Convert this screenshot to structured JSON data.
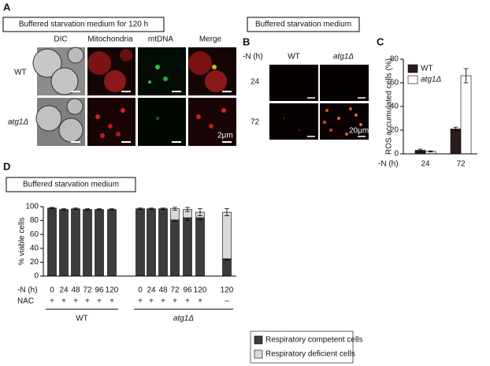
{
  "panels": {
    "a": {
      "label": "A",
      "box": "Buffered starvation medium for 120 h",
      "columns": [
        "DIC",
        "Mitochondria",
        "mtDNA",
        "Merge"
      ],
      "rows": [
        "WT",
        "atg1Δ"
      ],
      "scale": "2μm"
    },
    "b": {
      "label": "B",
      "box": "Buffered starvation medium",
      "row_header": "-N (h)",
      "columns": [
        "WT",
        "atg1Δ"
      ],
      "rows": [
        "24",
        "72"
      ],
      "scale": "20μm"
    }
  },
  "chart_data": [
    {
      "type": "bar",
      "label": "C",
      "y_label": "ROS accumulated cells (%)",
      "x_label": "-N (h)",
      "categories": [
        "24",
        "72"
      ],
      "stacked": false,
      "legend": "upper-left",
      "series": [
        {
          "name": "WT",
          "color": "#2b1d1d",
          "values": [
            3,
            21
          ],
          "errors": [
            1,
            1.5
          ]
        },
        {
          "name": "atg1Δ",
          "color": "#ffffff",
          "values": [
            2,
            66
          ],
          "errors": [
            0.5,
            6
          ]
        }
      ],
      "ylim": [
        0,
        80
      ],
      "yticks": [
        0,
        20,
        40,
        60,
        80
      ]
    },
    {
      "type": "bar",
      "label": "D",
      "title": "Buffered starvation medium",
      "y_label": "% viable cells",
      "x_label": "-N (h)",
      "categories": [
        "0",
        "24",
        "48",
        "72",
        "96",
        "120",
        "0",
        "24",
        "48",
        "72",
        "96",
        "120",
        "120"
      ],
      "nac_label": "NAC",
      "nac": [
        "+",
        "+",
        "+",
        "+",
        "+",
        "+",
        "+",
        "+",
        "+",
        "+",
        "+",
        "+",
        "–"
      ],
      "group_labels": [
        "WT",
        "atg1Δ"
      ],
      "stacked": true,
      "legend": "below",
      "series": [
        {
          "name": "Respiratory competent cells",
          "color": "#3c3c3c",
          "values": [
            98,
            96,
            97,
            96,
            96,
            96,
            97,
            97,
            97,
            81,
            84,
            84,
            25
          ],
          "errors": [
            1,
            1,
            1,
            1,
            1,
            1,
            1,
            1,
            1,
            2,
            4,
            3,
            2
          ]
        },
        {
          "name": "Respiratory deficient cells",
          "color": "#d9d9d9",
          "values": [
            0,
            0,
            0,
            0,
            0,
            0,
            0,
            0,
            0,
            16,
            12,
            8,
            67
          ],
          "errors": [
            0,
            0,
            0,
            0,
            0,
            0,
            0,
            0,
            0,
            2,
            3,
            5,
            5
          ]
        }
      ],
      "ylim": [
        0,
        100
      ],
      "yticks": [
        0,
        20,
        40,
        60,
        80,
        100
      ]
    }
  ]
}
